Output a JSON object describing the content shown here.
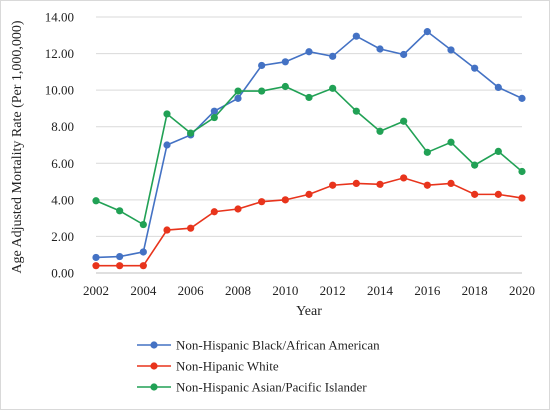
{
  "chart_data": {
    "type": "line",
    "title": "",
    "xlabel": "Year",
    "ylabel": "Age Adjusted Mortality Rate (Per 1,000,000)",
    "x": [
      2002,
      2003,
      2004,
      2005,
      2006,
      2007,
      2008,
      2009,
      2010,
      2011,
      2012,
      2013,
      2014,
      2015,
      2016,
      2017,
      2018,
      2019,
      2020
    ],
    "xticks": [
      "2002",
      "2004",
      "2006",
      "2008",
      "2010",
      "2012",
      "2014",
      "2016",
      "2018",
      "2020"
    ],
    "xlim": [
      2002,
      2020
    ],
    "yticks": [
      "0.00",
      "2.00",
      "4.00",
      "6.00",
      "8.00",
      "10.00",
      "12.00",
      "14.00"
    ],
    "ylim": [
      0,
      14
    ],
    "grid": "horizontal",
    "legend_position": "bottom",
    "series": [
      {
        "name": "Non-Hispanic Black/African American",
        "color": "#4472C4",
        "values": [
          0.85,
          0.9,
          1.15,
          7.0,
          7.55,
          8.85,
          9.55,
          11.35,
          11.55,
          12.1,
          11.85,
          12.95,
          12.25,
          11.95,
          13.2,
          12.2,
          11.2,
          10.15,
          9.55
        ]
      },
      {
        "name": "Non-Hipanic White",
        "color": "#E8341C",
        "values": [
          0.4,
          0.4,
          0.4,
          2.35,
          2.45,
          3.35,
          3.5,
          3.9,
          4.0,
          4.3,
          4.8,
          4.9,
          4.85,
          5.2,
          4.8,
          4.9,
          4.3,
          4.3,
          4.1
        ]
      },
      {
        "name": "Non-Hispanic Asian/Pacific Islander",
        "color": "#21A155",
        "values": [
          3.95,
          3.4,
          2.65,
          8.7,
          7.65,
          8.5,
          9.95,
          9.95,
          10.2,
          9.6,
          10.1,
          8.85,
          7.75,
          8.3,
          6.6,
          7.15,
          5.9,
          6.65,
          5.55
        ]
      }
    ]
  }
}
